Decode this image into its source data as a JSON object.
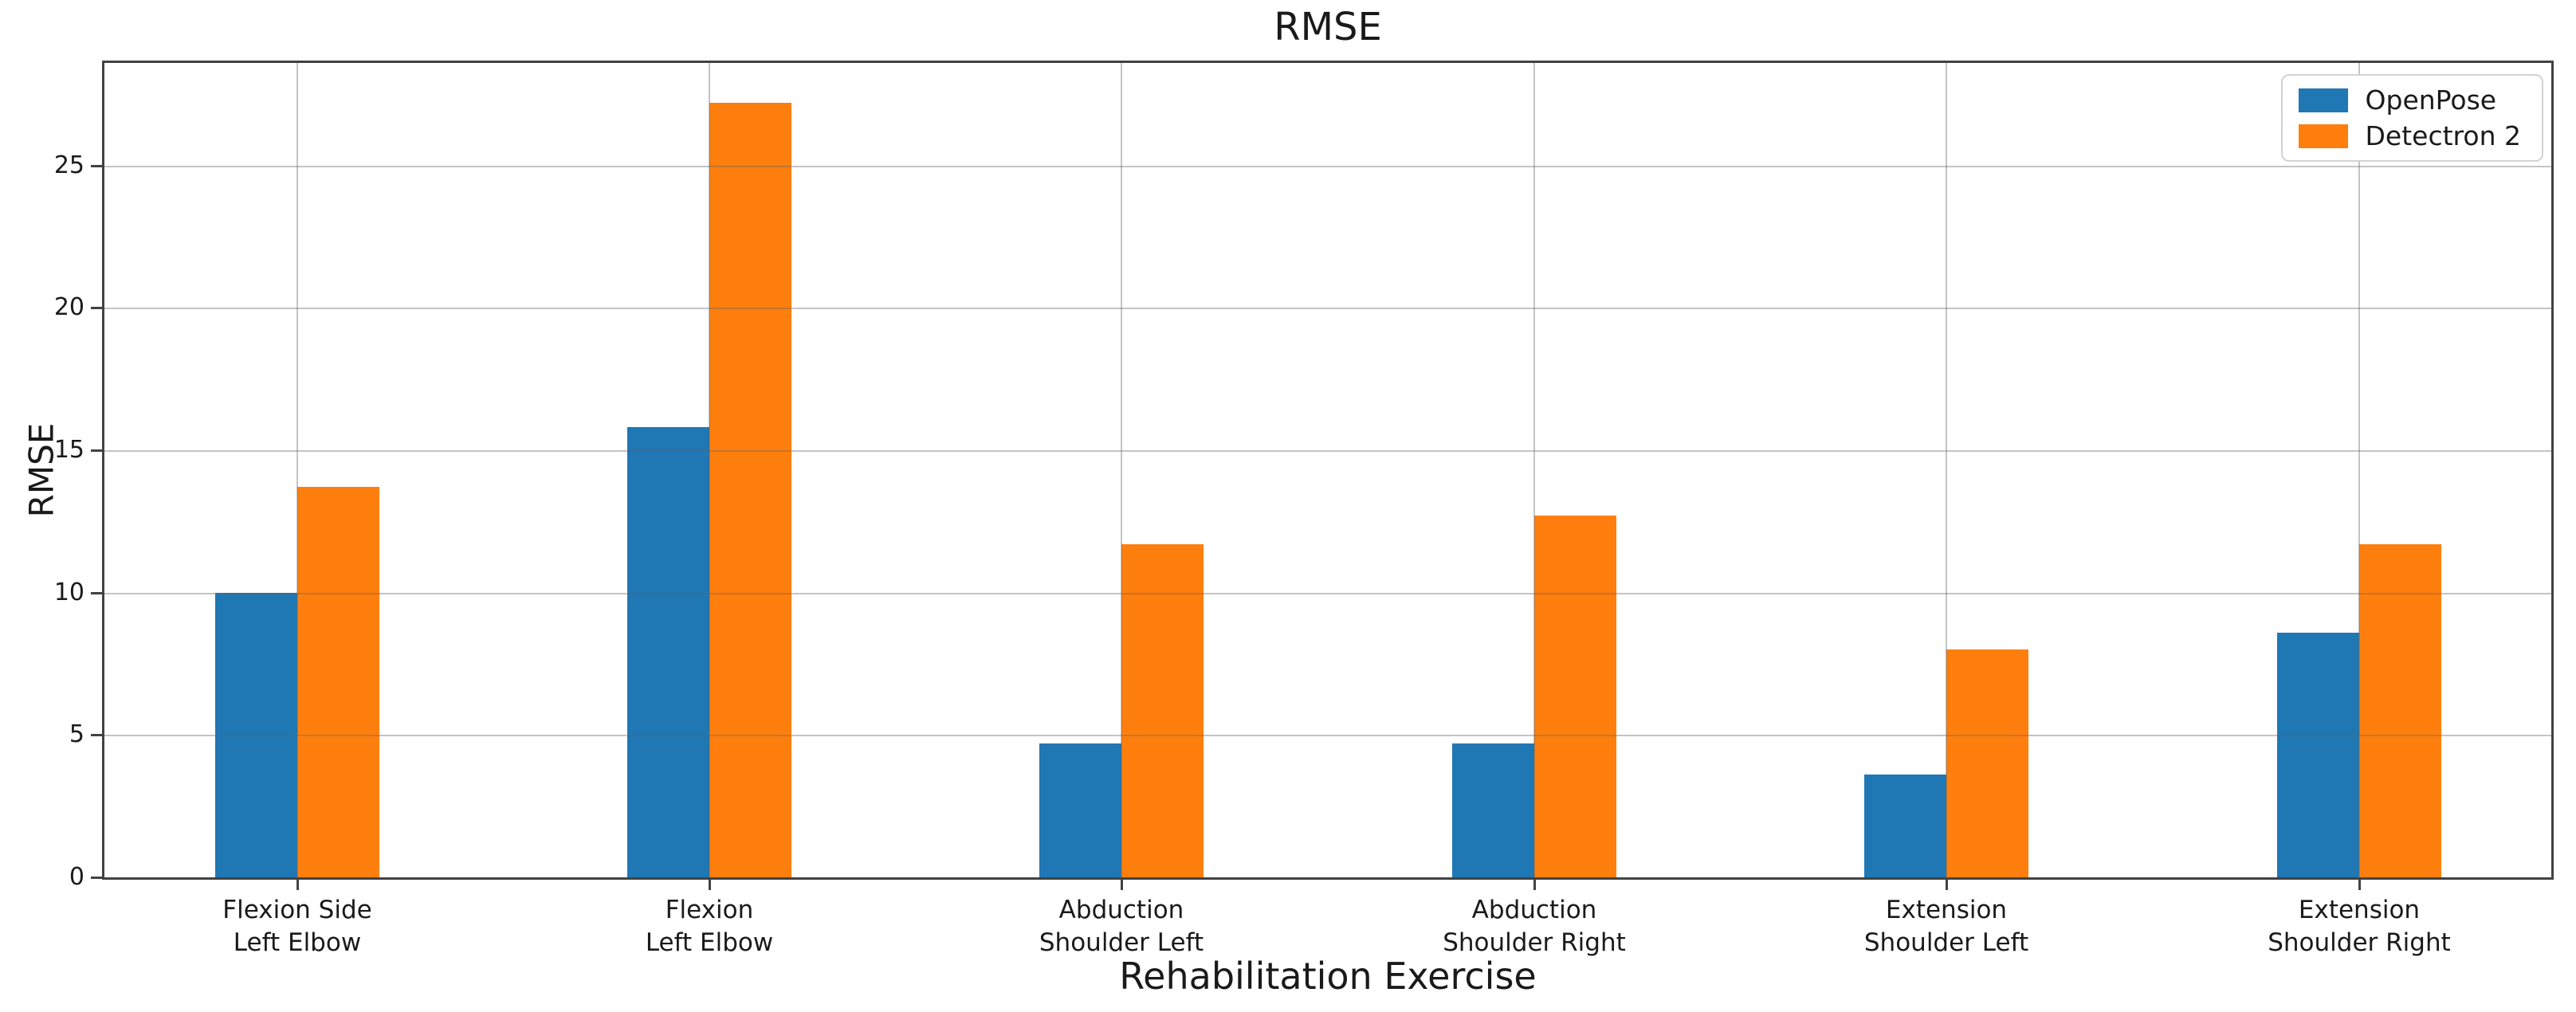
{
  "title": "RMSE",
  "colors": {
    "openpose": "#1f77b4",
    "detectron2": "#ff7f0e",
    "grid": "#a6a6a6",
    "spine": "#424242",
    "text": "#1a1a1a"
  },
  "chart_data": {
    "type": "bar",
    "title": "RMSE",
    "xlabel": "Rehabilitation Exercise",
    "ylabel": "RMSE",
    "ylim": [
      0,
      28.6
    ],
    "yticks": [
      0,
      5,
      10,
      15,
      20,
      25
    ],
    "grid": "both",
    "grid_above_bars": true,
    "legend_position": "upper right",
    "categories": [
      [
        "Flexion Side",
        "Left Elbow"
      ],
      [
        "Flexion",
        "Left Elbow"
      ],
      [
        "Abduction",
        "Shoulder Left"
      ],
      [
        "Abduction",
        "Shoulder Right"
      ],
      [
        "Extension",
        "Shoulder Left"
      ],
      [
        "Extension",
        "Shoulder Right"
      ]
    ],
    "series": [
      {
        "name": "OpenPose",
        "color": "#1f77b4",
        "values": [
          10.0,
          15.8,
          4.7,
          4.7,
          3.6,
          8.6
        ]
      },
      {
        "name": "Detectron 2",
        "color": "#ff7f0e",
        "values": [
          13.7,
          27.2,
          11.7,
          12.7,
          8.0,
          11.7
        ]
      }
    ]
  }
}
